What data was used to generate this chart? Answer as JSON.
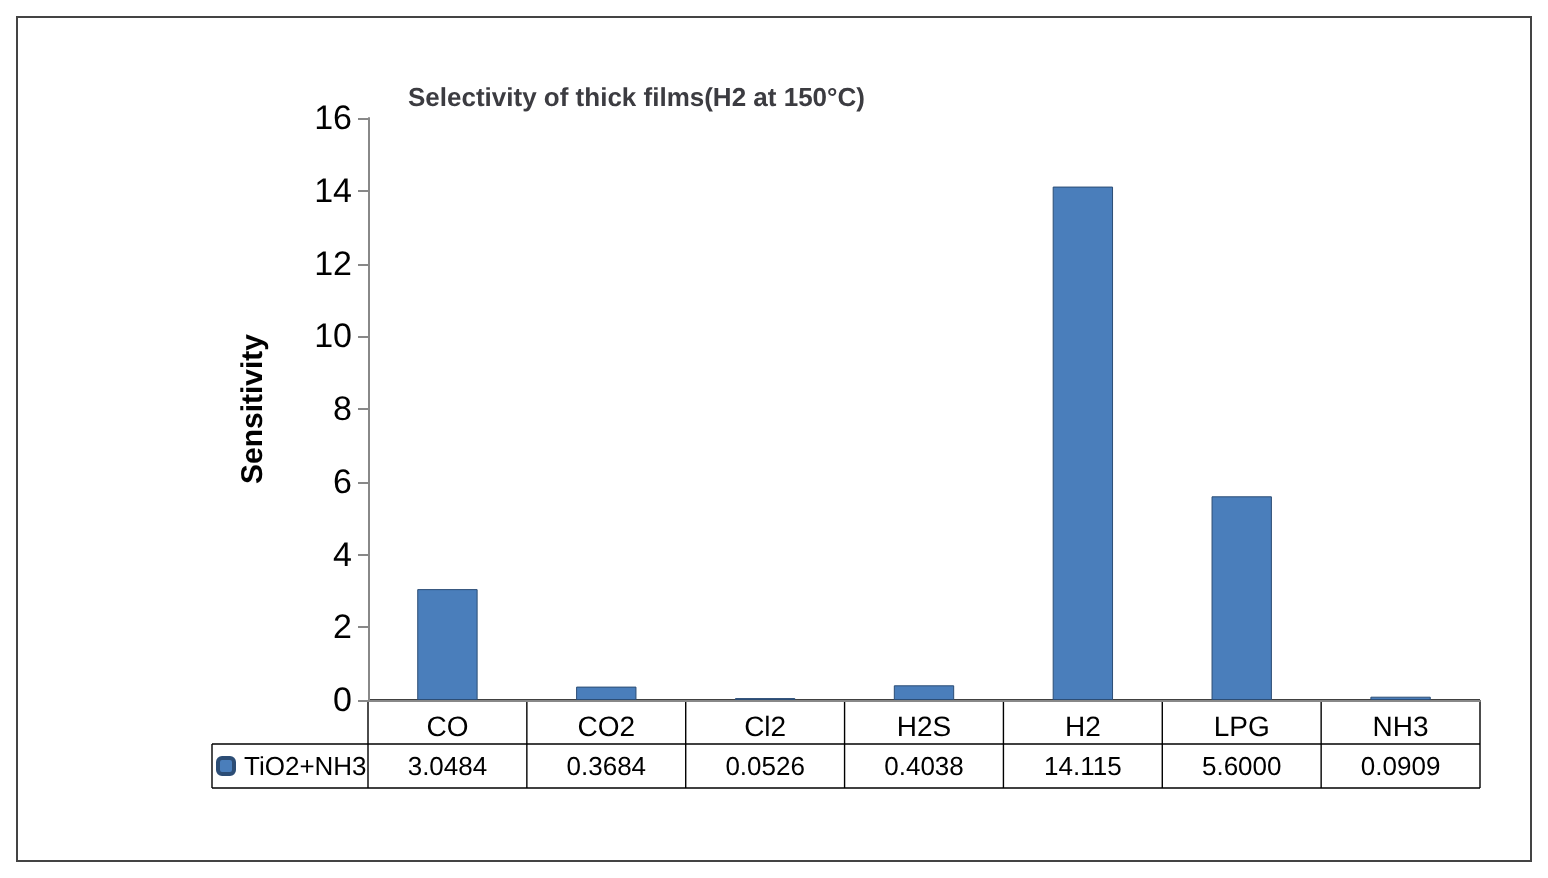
{
  "chart_data": {
    "type": "bar",
    "title": "Selectivity of thick films(H2 at 150°C)",
    "ylabel": "Sensitivity",
    "categories": [
      "CO",
      "CO2",
      "Cl2",
      "H2S",
      "H2",
      "LPG",
      "NH3"
    ],
    "series": [
      {
        "name": "TiO2+NH3",
        "color": "#4a7ebb",
        "values": [
          3.0484,
          0.3684,
          0.0526,
          0.4038,
          14.115,
          5.6,
          0.0909
        ],
        "value_labels": [
          "3.0484",
          "0.3684",
          "0.0526",
          "0.4038",
          "14.115",
          "5.6000",
          "0.0909"
        ]
      }
    ],
    "ylim": [
      0,
      16
    ],
    "yticks": [
      0,
      2,
      4,
      6,
      8,
      10,
      12,
      14,
      16
    ],
    "grid": false,
    "legend": "bottom"
  }
}
